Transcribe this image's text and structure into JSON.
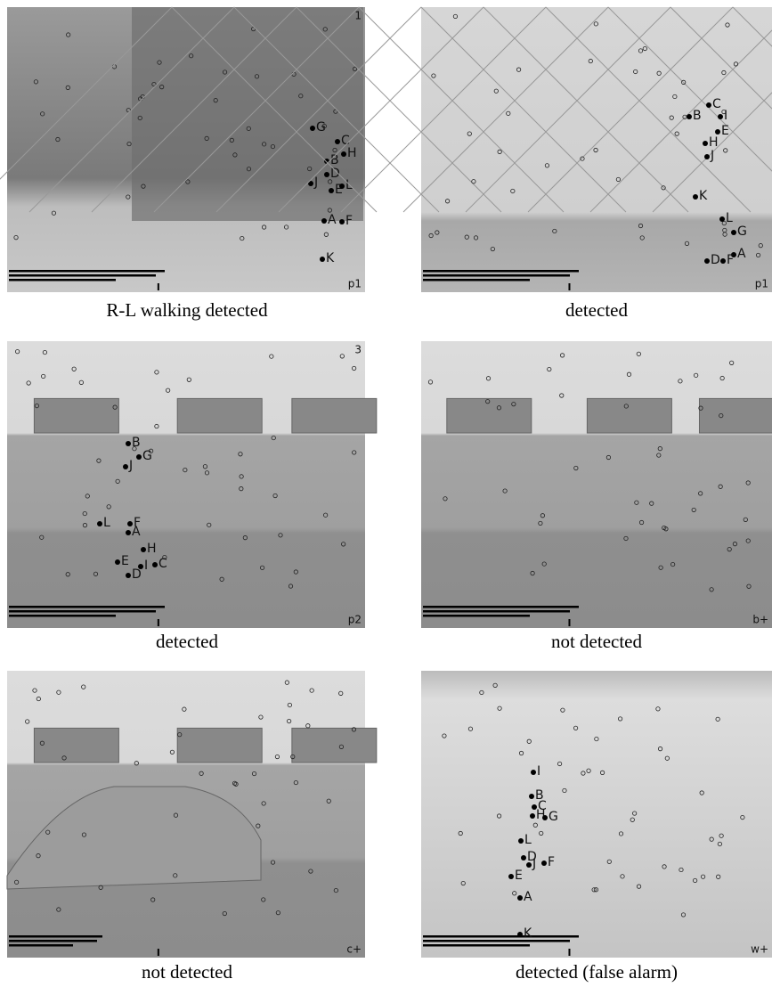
{
  "panels": [
    {
      "frame": "1",
      "tag": "p1",
      "caption": "R-L walking detected",
      "labels": [
        "G",
        "C",
        "H",
        "B",
        "D",
        "J",
        "E",
        "L",
        "A",
        "F",
        "K"
      ]
    },
    {
      "tag": "p1",
      "caption": "detected",
      "labels": [
        "C",
        "B",
        "I",
        "E",
        "H",
        "J",
        "K",
        "L",
        "G",
        "A",
        "D",
        "F"
      ]
    },
    {
      "frame": "3",
      "tag": "p2",
      "caption": "detected",
      "labels": [
        "B",
        "G",
        "J",
        "L",
        "F",
        "A",
        "H",
        "E",
        "I",
        "C",
        "D"
      ]
    },
    {
      "tag": "b+",
      "caption": "not detected",
      "labels": []
    },
    {
      "tag": "c+",
      "caption": "not detected",
      "labels": []
    },
    {
      "tag": "w+",
      "caption": "detected (false alarm)",
      "labels": [
        "I",
        "B",
        "C",
        "H",
        "G",
        "L",
        "D",
        "J",
        "F",
        "E",
        "A",
        "K"
      ]
    }
  ]
}
